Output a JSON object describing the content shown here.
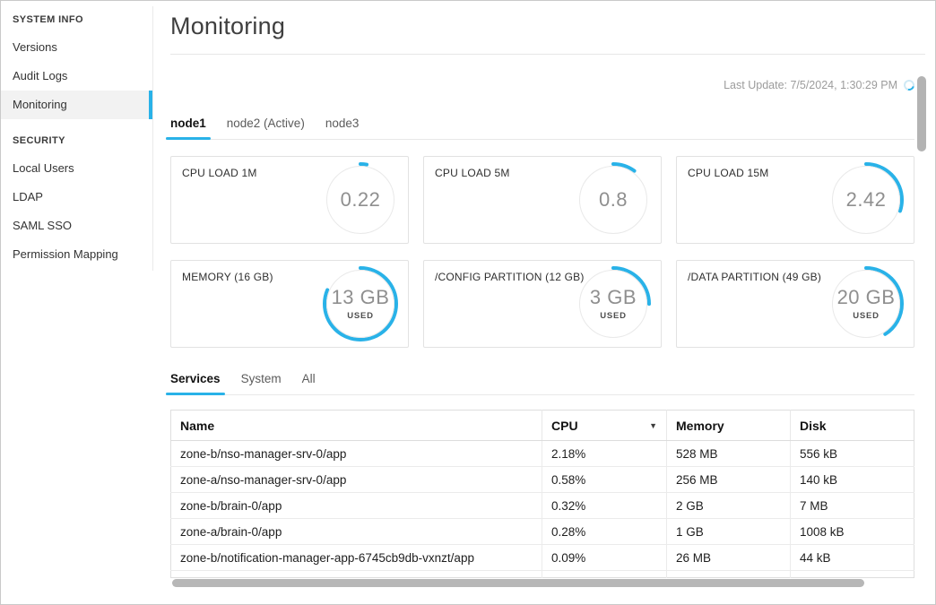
{
  "colors": {
    "accent": "#29b2e8"
  },
  "sidebar": {
    "sections": [
      {
        "heading": "SYSTEM INFO",
        "items": [
          {
            "label": "Versions",
            "active": false
          },
          {
            "label": "Audit Logs",
            "active": false
          },
          {
            "label": "Monitoring",
            "active": true
          }
        ]
      },
      {
        "heading": "SECURITY",
        "items": [
          {
            "label": "Local Users",
            "active": false
          },
          {
            "label": "LDAP",
            "active": false
          },
          {
            "label": "SAML SSO",
            "active": false
          },
          {
            "label": "Permission Mapping",
            "active": false
          }
        ]
      }
    ]
  },
  "header": {
    "title": "Monitoring",
    "last_update": "Last Update: 7/5/2024, 1:30:29 PM"
  },
  "node_tabs": [
    {
      "label": "node1",
      "active": true
    },
    {
      "label": "node2 (Active)",
      "active": false
    },
    {
      "label": "node3",
      "active": false
    }
  ],
  "gauges": [
    {
      "label": "CPU LOAD 1M",
      "value": "0.22",
      "sublabel": "",
      "fraction": 0.028
    },
    {
      "label": "CPU LOAD 5M",
      "value": "0.8",
      "sublabel": "",
      "fraction": 0.1
    },
    {
      "label": "CPU LOAD 15M",
      "value": "2.42",
      "sublabel": "",
      "fraction": 0.3
    },
    {
      "label": "MEMORY (16 GB)",
      "value": "13 GB",
      "sublabel": "USED",
      "fraction": 0.8125
    },
    {
      "label": "/CONFIG PARTITION (12 GB)",
      "value": "3 GB",
      "sublabel": "USED",
      "fraction": 0.25
    },
    {
      "label": "/DATA PARTITION (49 GB)",
      "value": "20 GB",
      "sublabel": "USED",
      "fraction": 0.41
    }
  ],
  "view_tabs": [
    {
      "label": "Services",
      "active": true
    },
    {
      "label": "System",
      "active": false
    },
    {
      "label": "All",
      "active": false
    }
  ],
  "table": {
    "columns": [
      {
        "label": "Name"
      },
      {
        "label": "CPU",
        "sort_indicator": "▼"
      },
      {
        "label": "Memory"
      },
      {
        "label": "Disk"
      }
    ],
    "rows": [
      [
        "zone-b/nso-manager-srv-0/app",
        "2.18%",
        "528 MB",
        "556 kB"
      ],
      [
        "zone-a/nso-manager-srv-0/app",
        "0.58%",
        "256 MB",
        "140 kB"
      ],
      [
        "zone-b/brain-0/app",
        "0.32%",
        "2 GB",
        "7 MB"
      ],
      [
        "zone-a/brain-0/app",
        "0.28%",
        "1 GB",
        "1008 kB"
      ],
      [
        "zone-b/notification-manager-app-6745cb9db-vxnzt/app",
        "0.09%",
        "26 MB",
        "44 kB"
      ]
    ]
  }
}
